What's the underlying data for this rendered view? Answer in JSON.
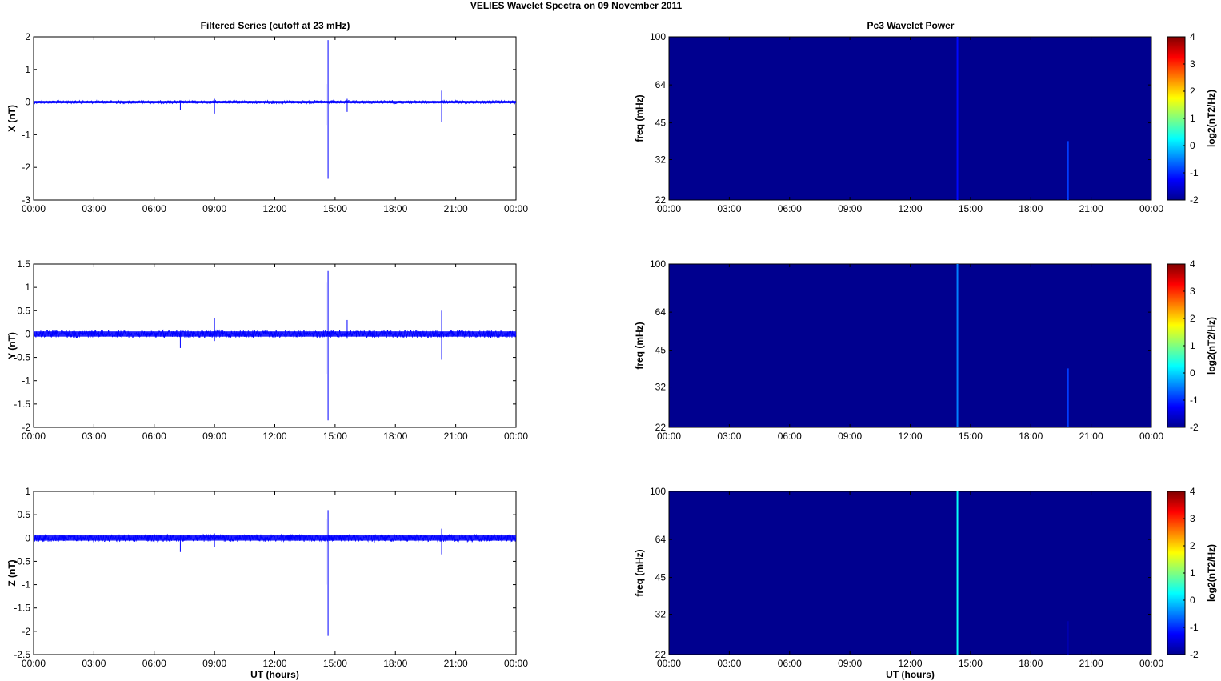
{
  "figure": {
    "title": "VELIES Wavelet Spectra on 09 November  2011",
    "left_title": "Filtered Series (cutoff at 23 mHz)",
    "right_title": "Pc3 Wavelet Power",
    "xlabel": "UT (hours)",
    "freq_label": "freq (mHz)",
    "colorbar_label": "log2(nT2/Hz)"
  },
  "x_tick_labels": [
    "00:00",
    "03:00",
    "06:00",
    "09:00",
    "12:00",
    "15:00",
    "18:00",
    "21:00",
    "00:00"
  ],
  "colors": {
    "series_line": "#0000ff",
    "spectrogram_bg": "#00008f"
  },
  "chart_data": [
    {
      "type": "line",
      "ylabel": "X (nT)",
      "xlim": [
        0,
        24
      ],
      "ylim": [
        -3,
        2
      ],
      "y_ticks": [
        2,
        1,
        0,
        -1,
        -2,
        -3
      ],
      "baseline_noise": 0.05,
      "spikes": [
        {
          "x": 4.0,
          "y": [
            -0.25,
            0.1
          ]
        },
        {
          "x": 7.3,
          "y": [
            -0.25,
            0.05
          ]
        },
        {
          "x": 9.0,
          "y": [
            -0.35,
            0.1
          ]
        },
        {
          "x": 14.55,
          "y": [
            -0.7,
            0.55
          ]
        },
        {
          "x": 14.65,
          "y": [
            -2.35,
            1.9
          ]
        },
        {
          "x": 15.6,
          "y": [
            -0.3,
            0.1
          ]
        },
        {
          "x": 20.3,
          "y": [
            -0.6,
            0.35
          ]
        }
      ]
    },
    {
      "type": "line",
      "ylabel": "Y (nT)",
      "xlim": [
        0,
        24
      ],
      "ylim": [
        -2,
        1.5
      ],
      "y_ticks": [
        1.5,
        1,
        0.5,
        0,
        -0.5,
        -1,
        -1.5,
        -2
      ],
      "baseline_noise": 0.08,
      "spikes": [
        {
          "x": 4.0,
          "y": [
            -0.15,
            0.3
          ]
        },
        {
          "x": 7.3,
          "y": [
            -0.3,
            0.05
          ]
        },
        {
          "x": 9.0,
          "y": [
            -0.15,
            0.35
          ]
        },
        {
          "x": 14.55,
          "y": [
            -0.85,
            1.1
          ]
        },
        {
          "x": 14.65,
          "y": [
            -1.85,
            1.35
          ]
        },
        {
          "x": 15.6,
          "y": [
            -0.1,
            0.3
          ]
        },
        {
          "x": 20.3,
          "y": [
            -0.55,
            0.5
          ]
        }
      ]
    },
    {
      "type": "line",
      "ylabel": "Z (nT)",
      "xlim": [
        0,
        24
      ],
      "ylim": [
        -2.5,
        1
      ],
      "y_ticks": [
        1,
        0.5,
        0,
        -0.5,
        -1,
        -1.5,
        -2,
        -2.5
      ],
      "baseline_noise": 0.08,
      "spikes": [
        {
          "x": 4.0,
          "y": [
            -0.25,
            0.1
          ]
        },
        {
          "x": 7.3,
          "y": [
            -0.3,
            0.05
          ]
        },
        {
          "x": 9.0,
          "y": [
            -0.2,
            0.1
          ]
        },
        {
          "x": 14.55,
          "y": [
            -1.0,
            0.4
          ]
        },
        {
          "x": 14.65,
          "y": [
            -2.1,
            0.6
          ]
        },
        {
          "x": 20.3,
          "y": [
            -0.35,
            0.2
          ]
        }
      ]
    },
    {
      "type": "heatmap",
      "xlim": [
        0,
        24
      ],
      "freq_ticks": [
        100,
        64,
        45,
        32,
        22
      ],
      "colorbar_ticks": [
        4,
        3,
        2,
        1,
        0,
        -1,
        -2
      ],
      "features": [
        {
          "x": 14.35,
          "top_freq": 100,
          "level": -1.2
        },
        {
          "x": 19.85,
          "top_freq": 38,
          "level": -0.9
        }
      ]
    },
    {
      "type": "heatmap",
      "xlim": [
        0,
        24
      ],
      "freq_ticks": [
        100,
        64,
        45,
        32,
        22
      ],
      "colorbar_ticks": [
        4,
        3,
        2,
        1,
        0,
        -1,
        -2
      ],
      "features": [
        {
          "x": 14.35,
          "top_freq": 100,
          "level": -0.5
        },
        {
          "x": 19.85,
          "top_freq": 38,
          "level": -0.9
        }
      ]
    },
    {
      "type": "heatmap",
      "xlim": [
        0,
        24
      ],
      "freq_ticks": [
        100,
        64,
        45,
        32,
        22
      ],
      "colorbar_ticks": [
        4,
        3,
        2,
        1,
        0,
        -1,
        -2
      ],
      "features": [
        {
          "x": 14.35,
          "top_freq": 100,
          "level": 0.3
        },
        {
          "x": 19.85,
          "top_freq": 30,
          "level": -1.8
        }
      ]
    }
  ]
}
